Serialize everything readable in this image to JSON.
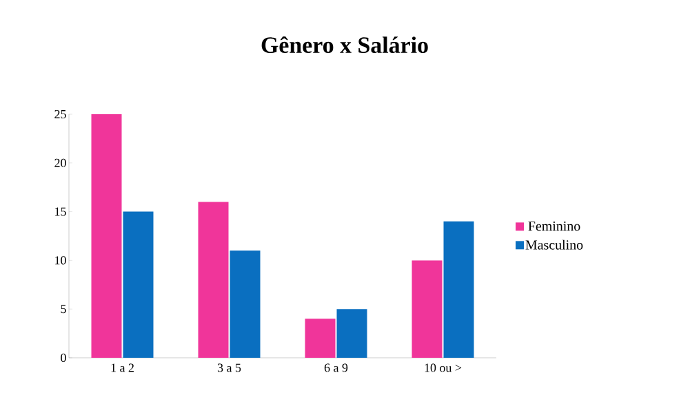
{
  "chart_data": {
    "type": "bar",
    "title": "Gênero x Salário",
    "categories": [
      "1 a 2",
      "3 a 5",
      "6 a 9",
      "10 ou >"
    ],
    "series": [
      {
        "name": "Feminino",
        "color": "#f0359a",
        "values": [
          25,
          16,
          4,
          10
        ]
      },
      {
        "name": "Masculino",
        "color": "#0a6fc0",
        "values": [
          15,
          11,
          5,
          14
        ]
      }
    ],
    "ylim": [
      0,
      25
    ],
    "yticks": [
      0,
      5,
      10,
      15,
      20,
      25
    ],
    "legend": "right"
  }
}
